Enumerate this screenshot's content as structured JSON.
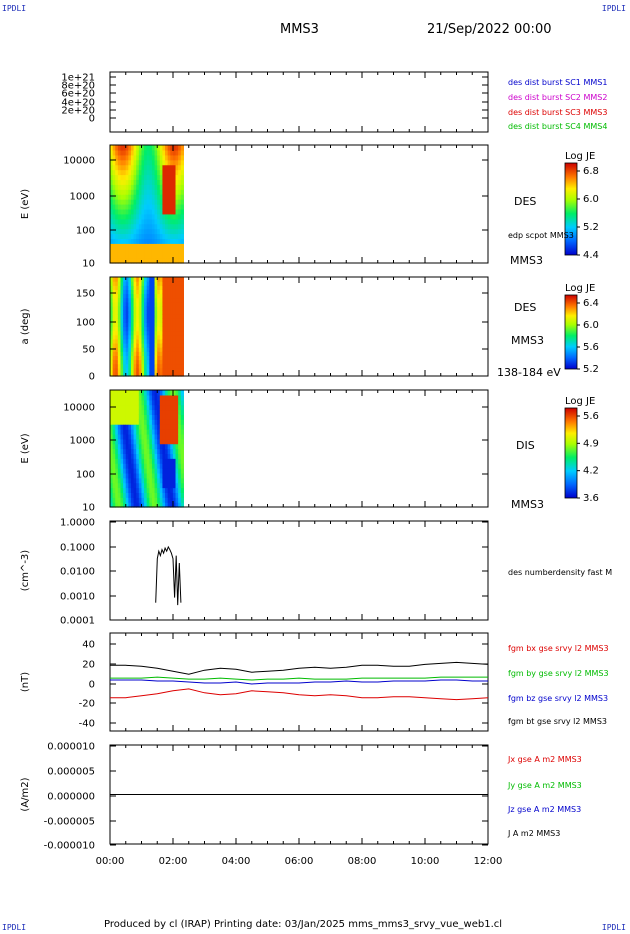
{
  "header": {
    "corner_tl": "IPDLI",
    "corner_tr": "IPDLI",
    "corner_bl": "IPDLI",
    "corner_br": "IPDLI",
    "spacecraft": "MMS3",
    "datetime": "21/Sep/2022 00:00"
  },
  "footer": {
    "text": "Produced by cl (IRAP)   Printing date: 03/Jan/2025   mms_mms3_srvy_vue_web1.cl"
  },
  "colors": {
    "mms1": "#0000cc",
    "mms2": "#cc00cc",
    "mms3": "#dd0000",
    "mms4": "#00bb00",
    "bx": "#dd0000",
    "by": "#00bb00",
    "bz": "#0000cc",
    "bt": "#000000"
  },
  "chart_data": [
    {
      "type": "line",
      "panel": "burst",
      "y_ticks": [
        "1e+21",
        "8e+20",
        "6e+20",
        "4e+20",
        "2e+20",
        "0"
      ],
      "ylim": [
        0,
        1.1e+21
      ],
      "legend": [
        {
          "label": "des dist burst SC1 MMS1",
          "color_key": "mms1"
        },
        {
          "label": "des dist burst SC2 MMS2",
          "color_key": "mms2"
        },
        {
          "label": "des dist burst SC3 MMS3",
          "color_key": "mms3"
        },
        {
          "label": "des dist burst SC4 MMS4",
          "color_key": "mms4"
        }
      ],
      "series": [
        {
          "values": [
            0,
            0
          ]
        }
      ]
    },
    {
      "type": "heatmap",
      "panel": "des_energy",
      "ylabel": "E (eV)",
      "y_ticks": [
        "10000",
        "1000",
        "100",
        "10"
      ],
      "scale": "log",
      "ylim": [
        10,
        30000
      ],
      "right_labels": [
        "DES",
        "edp scpot MMS3",
        "MMS3"
      ],
      "colorbar": {
        "title": "Log JE",
        "ticks": [
          "6.8",
          "6.0",
          "5.2",
          "4.4"
        ],
        "range": [
          4.4,
          6.8
        ]
      },
      "data_end_time": "02:20"
    },
    {
      "type": "heatmap",
      "panel": "des_pitch",
      "ylabel": "a (deg)",
      "y_ticks": [
        "150",
        "100",
        "50",
        "0"
      ],
      "ylim": [
        0,
        180
      ],
      "right_labels": [
        "DES",
        "MMS3",
        "138-184 eV"
      ],
      "colorbar": {
        "title": "Log JE",
        "ticks": [
          "6.4",
          "6.0",
          "5.6",
          "5.2"
        ],
        "range": [
          5.2,
          6.4
        ]
      },
      "data_end_time": "02:20"
    },
    {
      "type": "heatmap",
      "panel": "dis_energy",
      "ylabel": "E (eV)",
      "y_ticks": [
        "10000",
        "1000",
        "100",
        "10"
      ],
      "scale": "log",
      "ylim": [
        10,
        30000
      ],
      "right_labels": [
        "DIS",
        "MMS3"
      ],
      "colorbar": {
        "title": "Log JE",
        "ticks": [
          "5.6",
          "4.9",
          "4.2",
          "3.6"
        ],
        "range": [
          3.6,
          5.6
        ]
      },
      "data_end_time": "02:20"
    },
    {
      "type": "line",
      "panel": "density",
      "ylabel": "(cm^-3)",
      "y_ticks": [
        "1.0000",
        "0.1000",
        "0.0100",
        "0.0010",
        "0.0001"
      ],
      "scale": "log",
      "ylim": [
        0.0001,
        1
      ],
      "right_labels": [
        "des numberdensity fast M"
      ],
      "series": [
        {
          "x_hours": [
            1.45,
            1.5,
            1.55,
            1.6,
            1.65,
            1.7,
            1.75,
            1.8,
            1.85,
            1.9,
            1.95,
            2.0,
            2.05,
            2.1,
            2.15,
            2.2,
            2.25
          ],
          "values": [
            0.0005,
            0.03,
            0.06,
            0.04,
            0.07,
            0.05,
            0.08,
            0.06,
            0.09,
            0.07,
            0.05,
            0.03,
            0.0008,
            0.04,
            0.0004,
            0.02,
            0.0005
          ]
        }
      ]
    },
    {
      "type": "line",
      "panel": "fgm",
      "ylabel": "(nT)",
      "y_ticks": [
        "40",
        "20",
        "0",
        "-20",
        "-40"
      ],
      "ylim": [
        -50,
        50
      ],
      "x_hours": [
        0,
        0.5,
        1,
        1.5,
        2,
        2.5,
        3,
        3.5,
        4,
        4.5,
        5,
        5.5,
        6,
        6.5,
        7,
        7.5,
        8,
        8.5,
        9,
        9.5,
        10,
        10.5,
        11,
        11.5,
        12
      ],
      "series": [
        {
          "name": "fgm bx gse srvy l2 MMS3",
          "color_key": "bx",
          "values": [
            -16,
            -16,
            -14,
            -12,
            -9,
            -7,
            -11,
            -13,
            -12,
            -9,
            -10,
            -11,
            -13,
            -14,
            -13,
            -14,
            -16,
            -16,
            -15,
            -15,
            -16,
            -17,
            -18,
            -17,
            -16
          ]
        },
        {
          "name": "fgm by gse srvy l2 MMS3",
          "color_key": "by",
          "values": [
            4,
            4,
            4,
            5,
            4,
            3,
            3,
            4,
            3,
            2,
            3,
            3,
            4,
            3,
            3,
            3,
            4,
            4,
            4,
            4,
            4,
            5,
            5,
            5,
            5
          ]
        },
        {
          "name": "fgm bz gse srvy l2 MMS3",
          "color_key": "bz",
          "values": [
            2,
            2,
            2,
            1,
            1,
            0,
            -1,
            -1,
            0,
            -2,
            -1,
            -1,
            -1,
            0,
            0,
            1,
            0,
            0,
            1,
            1,
            1,
            2,
            2,
            1,
            1
          ]
        },
        {
          "name": "fgm bt gse srvy l2 MMS3",
          "color_key": "bt",
          "values": [
            17,
            17,
            16,
            14,
            11,
            8,
            12,
            14,
            13,
            10,
            11,
            12,
            14,
            15,
            14,
            15,
            17,
            17,
            16,
            16,
            18,
            19,
            20,
            19,
            18
          ]
        }
      ]
    },
    {
      "type": "line",
      "panel": "current",
      "ylabel": "(A/m2)",
      "y_ticks": [
        "0.000010",
        "0.000005",
        "0.000000",
        "-0.000005",
        "-0.000010"
      ],
      "ylim": [
        -1e-05,
        1e-05
      ],
      "legend": [
        {
          "label": "Jx gse A m2 MMS3",
          "color_key": "bx"
        },
        {
          "label": "Jy gse A m2 MMS3",
          "color_key": "by"
        },
        {
          "label": "Jz gse A m2 MMS3",
          "color_key": "bz"
        },
        {
          "label": "J A m2 MMS3",
          "color_key": "bt"
        }
      ],
      "series": [
        {
          "values": [
            0,
            0
          ]
        }
      ]
    }
  ],
  "x_axis": {
    "ticks": [
      "00:00",
      "02:00",
      "04:00",
      "06:00",
      "08:00",
      "10:00",
      "12:00"
    ],
    "range_hours": [
      0,
      12
    ]
  }
}
